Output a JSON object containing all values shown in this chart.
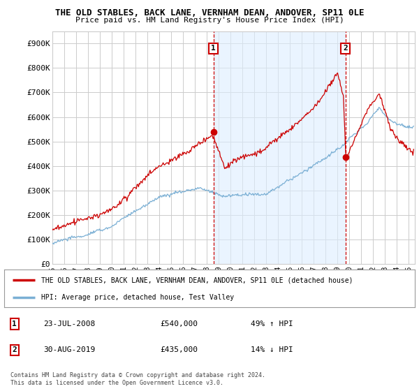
{
  "title": "THE OLD STABLES, BACK LANE, VERNHAM DEAN, ANDOVER, SP11 0LE",
  "subtitle": "Price paid vs. HM Land Registry's House Price Index (HPI)",
  "ylabel_ticks": [
    "£0",
    "£100K",
    "£200K",
    "£300K",
    "£400K",
    "£500K",
    "£600K",
    "£700K",
    "£800K",
    "£900K"
  ],
  "ytick_values": [
    0,
    100000,
    200000,
    300000,
    400000,
    500000,
    600000,
    700000,
    800000,
    900000
  ],
  "ylim": [
    0,
    950000
  ],
  "xlim_start": 1995.0,
  "xlim_end": 2025.5,
  "xtick_years": [
    1995,
    1996,
    1997,
    1998,
    1999,
    2000,
    2001,
    2002,
    2003,
    2004,
    2005,
    2006,
    2007,
    2008,
    2009,
    2010,
    2011,
    2012,
    2013,
    2014,
    2015,
    2016,
    2017,
    2018,
    2019,
    2020,
    2021,
    2022,
    2023,
    2024,
    2025
  ],
  "hpi_color": "#7aafd4",
  "price_color": "#cc0000",
  "shade_color": "#ddeeff",
  "grid_color": "#cccccc",
  "background_color": "#ffffff",
  "sale1_x": 2008.55,
  "sale1_y": 540000,
  "sale2_x": 2019.66,
  "sale2_y": 435000,
  "sale1_label": "1",
  "sale2_label": "2",
  "legend_line1": "THE OLD STABLES, BACK LANE, VERNHAM DEAN, ANDOVER, SP11 0LE (detached house)",
  "legend_line2": "HPI: Average price, detached house, Test Valley",
  "annotation1_date": "23-JUL-2008",
  "annotation1_price": "£540,000",
  "annotation1_hpi": "49% ↑ HPI",
  "annotation2_date": "30-AUG-2019",
  "annotation2_price": "£435,000",
  "annotation2_hpi": "14% ↓ HPI",
  "footer": "Contains HM Land Registry data © Crown copyright and database right 2024.\nThis data is licensed under the Open Government Licence v3.0."
}
